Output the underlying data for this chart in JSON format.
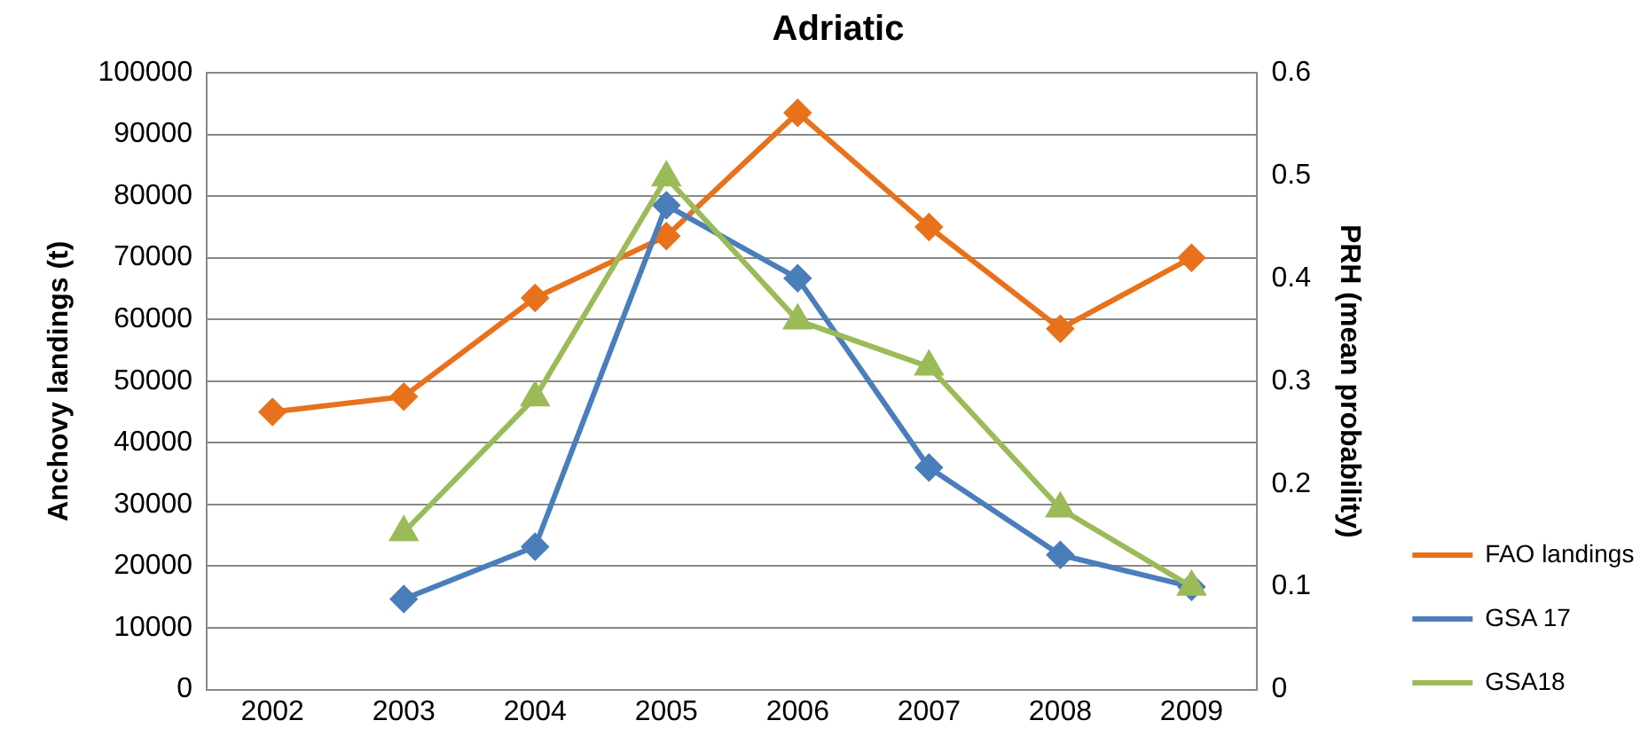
{
  "chart_data": {
    "type": "line",
    "title": "Adriatic",
    "ylabel": "Anchovy landings (t)",
    "y2label": "PRH (mean probability)",
    "categories": [
      "2002",
      "2003",
      "2004",
      "2005",
      "2006",
      "2007",
      "2008",
      "2009"
    ],
    "series": [
      {
        "name": "FAO landings",
        "color": "#e8711c",
        "marker": "diamond",
        "values": [
          45000,
          47500,
          63500,
          73500,
          93500,
          75000,
          58500,
          70000
        ]
      },
      {
        "name": "GSA 17",
        "color": "#4a7ebb",
        "marker": "diamond",
        "axis": "y2",
        "values": [
          null,
          0.088,
          0.139,
          0.471,
          0.4,
          0.216,
          0.131,
          0.1
        ]
      },
      {
        "name": "GSA18",
        "color": "#9bbb59",
        "marker": "triangle",
        "axis": "y2",
        "values": [
          null,
          0.153,
          0.284,
          0.498,
          0.359,
          0.314,
          0.176,
          0.1
        ]
      }
    ],
    "ylim": [
      0,
      100000
    ],
    "yticks": [
      0,
      10000,
      20000,
      30000,
      40000,
      50000,
      60000,
      70000,
      80000,
      90000,
      100000
    ],
    "y2lim": [
      0,
      0.6
    ],
    "y2ticks": [
      0,
      0.1,
      0.2,
      0.3,
      0.4,
      0.5,
      0.6
    ],
    "grid": "y",
    "legend": "right",
    "line_style": "solid"
  }
}
